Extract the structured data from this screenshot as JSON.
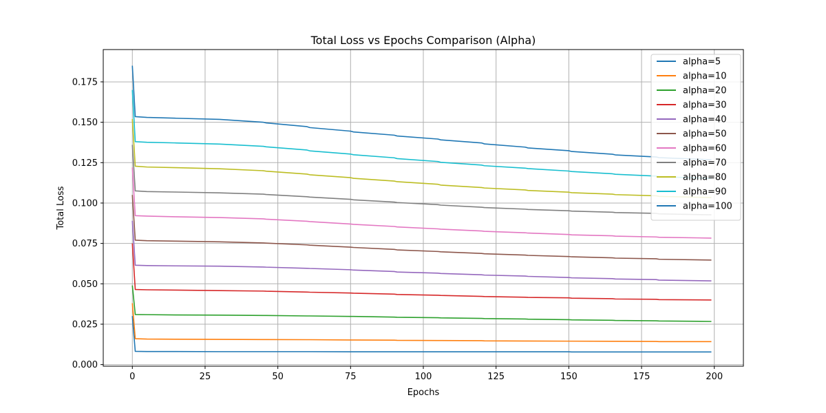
{
  "chart_data": {
    "type": "line",
    "title": "Total Loss vs Epochs Comparison (Alpha)",
    "xlabel": "Epochs",
    "ylabel": "Total Loss",
    "xlim": [
      -10,
      210
    ],
    "ylim": [
      -0.001,
      0.195
    ],
    "x_ticks": [
      0,
      25,
      50,
      75,
      100,
      125,
      150,
      175,
      200
    ],
    "y_ticks": [
      0.0,
      0.025,
      0.05,
      0.075,
      0.1,
      0.125,
      0.15,
      0.175
    ],
    "y_tick_labels": [
      "0.000",
      "0.025",
      "0.050",
      "0.075",
      "0.100",
      "0.125",
      "0.150",
      "0.175"
    ],
    "x_tick_labels": [
      "0",
      "25",
      "50",
      "75",
      "100",
      "125",
      "150",
      "175",
      "200"
    ],
    "grid": true,
    "legend_position": "top-right",
    "x": [
      0,
      1,
      5,
      15,
      30,
      45,
      46,
      60,
      61,
      75,
      76,
      90,
      91,
      105,
      106,
      120,
      121,
      135,
      136,
      150,
      151,
      165,
      166,
      180,
      181,
      199
    ],
    "series": [
      {
        "name": "alpha=5",
        "color": "#1f77b4",
        "values": [
          0.03,
          0.0082,
          0.0081,
          0.0081,
          0.008,
          0.008,
          0.008,
          0.008,
          0.008,
          0.0079,
          0.0079,
          0.0079,
          0.0079,
          0.0079,
          0.0079,
          0.0079,
          0.0079,
          0.0079,
          0.0079,
          0.0079,
          0.0078,
          0.0078,
          0.0078,
          0.0078,
          0.0078,
          0.0078
        ]
      },
      {
        "name": "alpha=10",
        "color": "#ff7f0e",
        "values": [
          0.038,
          0.016,
          0.0158,
          0.0157,
          0.0156,
          0.0155,
          0.0155,
          0.0154,
          0.0154,
          0.0152,
          0.0152,
          0.0151,
          0.015,
          0.0149,
          0.0149,
          0.0148,
          0.0147,
          0.0146,
          0.0146,
          0.0145,
          0.0145,
          0.0144,
          0.0144,
          0.0143,
          0.0142,
          0.0142
        ]
      },
      {
        "name": "alpha=20",
        "color": "#2ca02c",
        "values": [
          0.049,
          0.031,
          0.0309,
          0.0307,
          0.0306,
          0.0304,
          0.0304,
          0.0301,
          0.0301,
          0.0298,
          0.0298,
          0.0294,
          0.0293,
          0.029,
          0.0289,
          0.0286,
          0.0285,
          0.0282,
          0.0281,
          0.0278,
          0.0277,
          0.0274,
          0.0273,
          0.0271,
          0.027,
          0.0267
        ]
      },
      {
        "name": "alpha=30",
        "color": "#d62728",
        "values": [
          0.075,
          0.0465,
          0.0463,
          0.0461,
          0.0458,
          0.0455,
          0.0454,
          0.0449,
          0.0448,
          0.0443,
          0.0442,
          0.0436,
          0.0434,
          0.0429,
          0.0428,
          0.0422,
          0.0421,
          0.0417,
          0.0416,
          0.0413,
          0.0411,
          0.0408,
          0.0406,
          0.0404,
          0.0402,
          0.04
        ]
      },
      {
        "name": "alpha=40",
        "color": "#9467bd",
        "values": [
          0.089,
          0.0615,
          0.0613,
          0.0611,
          0.0609,
          0.0604,
          0.0603,
          0.0596,
          0.0595,
          0.0587,
          0.0585,
          0.0576,
          0.0573,
          0.0566,
          0.0564,
          0.0556,
          0.0554,
          0.0548,
          0.0546,
          0.0539,
          0.0537,
          0.0532,
          0.053,
          0.0526,
          0.0523,
          0.0518
        ]
      },
      {
        "name": "alpha=50",
        "color": "#8c564b",
        "values": [
          0.105,
          0.077,
          0.0767,
          0.0764,
          0.076,
          0.0753,
          0.0752,
          0.0741,
          0.0739,
          0.0727,
          0.0725,
          0.0713,
          0.071,
          0.07,
          0.0698,
          0.0688,
          0.0686,
          0.0678,
          0.0676,
          0.0669,
          0.0667,
          0.0661,
          0.0659,
          0.0655,
          0.0652,
          0.0647
        ]
      },
      {
        "name": "alpha=60",
        "color": "#e377c2",
        "values": [
          0.122,
          0.0922,
          0.0919,
          0.0915,
          0.091,
          0.0902,
          0.09,
          0.0887,
          0.0885,
          0.087,
          0.0868,
          0.0855,
          0.0852,
          0.084,
          0.0838,
          0.0827,
          0.0825,
          0.0816,
          0.0814,
          0.0805,
          0.0803,
          0.0797,
          0.0795,
          0.079,
          0.0788,
          0.0783
        ]
      },
      {
        "name": "alpha=70",
        "color": "#7f7f7f",
        "values": [
          0.136,
          0.1075,
          0.1071,
          0.1068,
          0.1063,
          0.1055,
          0.1053,
          0.1039,
          0.1037,
          0.1023,
          0.102,
          0.1006,
          0.1003,
          0.099,
          0.0987,
          0.0974,
          0.0972,
          0.0962,
          0.096,
          0.0952,
          0.095,
          0.0943,
          0.0941,
          0.0936,
          0.0933,
          0.0927
        ]
      },
      {
        "name": "alpha=80",
        "color": "#bcbd22",
        "values": [
          0.152,
          0.1228,
          0.1223,
          0.1219,
          0.1212,
          0.12,
          0.1197,
          0.1179,
          0.1175,
          0.1157,
          0.1153,
          0.1136,
          0.1132,
          0.1116,
          0.1111,
          0.1096,
          0.1093,
          0.1081,
          0.1078,
          0.1067,
          0.1064,
          0.1055,
          0.1052,
          0.1045,
          0.1041,
          0.1034
        ]
      },
      {
        "name": "alpha=90",
        "color": "#17becf",
        "values": [
          0.17,
          0.138,
          0.1376,
          0.1372,
          0.1365,
          0.1351,
          0.1348,
          0.1328,
          0.1323,
          0.1303,
          0.1299,
          0.128,
          0.1275,
          0.1257,
          0.1252,
          0.1235,
          0.1231,
          0.1216,
          0.1213,
          0.1198,
          0.1195,
          0.1181,
          0.1178,
          0.1167,
          0.1163,
          0.1153
        ]
      },
      {
        "name": "alpha=100",
        "color": "#1f77b4",
        "values": [
          0.185,
          0.1535,
          0.153,
          0.1525,
          0.1518,
          0.15,
          0.1496,
          0.1473,
          0.1467,
          0.1445,
          0.144,
          0.142,
          0.1415,
          0.1396,
          0.1391,
          0.1372,
          0.1366,
          0.1346,
          0.1341,
          0.1324,
          0.1319,
          0.1302,
          0.1298,
          0.1285,
          0.1281,
          0.1268
        ]
      }
    ]
  },
  "colors": {
    "grid": "#b0b0b0",
    "axes": "#000000",
    "legend_border": "#cccccc"
  }
}
